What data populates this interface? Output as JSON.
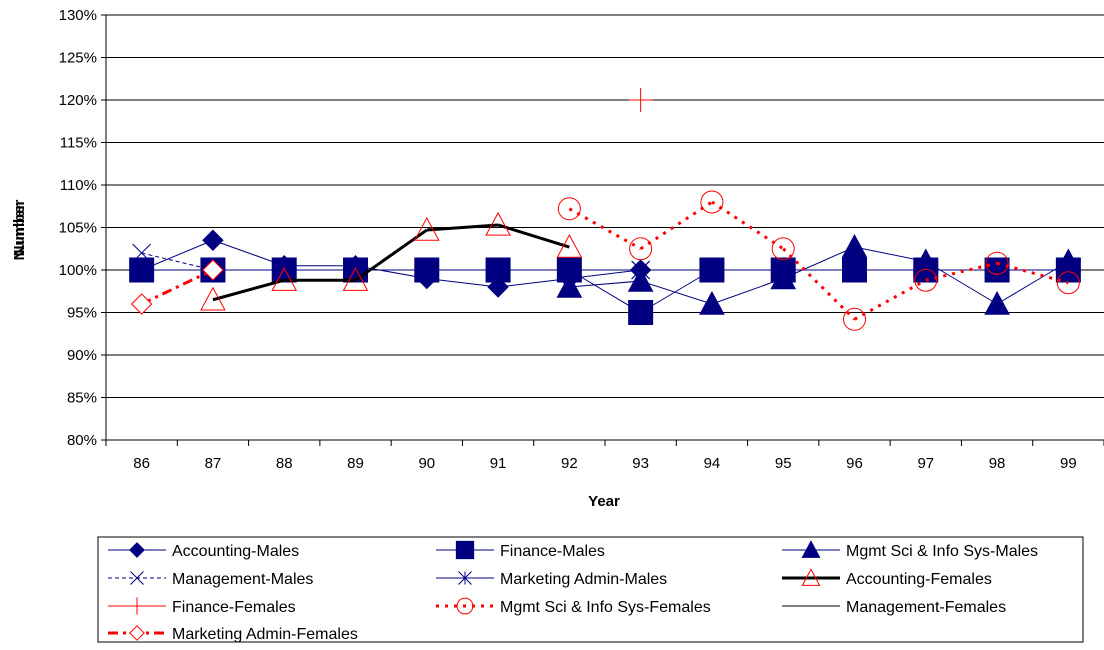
{
  "colors": {
    "navy": "#000080",
    "red": "#ff0000",
    "black": "#000000"
  },
  "chart_data": {
    "type": "line",
    "title": "",
    "xlabel": "Year",
    "ylabel": "Number",
    "ylabel_overlap": "Number",
    "categories": [
      "86",
      "87",
      "88",
      "89",
      "90",
      "91",
      "92",
      "93",
      "94",
      "95",
      "96",
      "97",
      "98",
      "99"
    ],
    "ylim": [
      0.8,
      1.3
    ],
    "yticks": [
      "80%",
      "85%",
      "90%",
      "95%",
      "100%",
      "105%",
      "110%",
      "115%",
      "120%",
      "125%",
      "130%"
    ],
    "grid": true,
    "legend_position": "bottom",
    "series": [
      {
        "name": "Accounting-Males",
        "color": "#000080",
        "marker": "diamond-filled",
        "dash": "solid",
        "values": [
          1.0,
          1.035,
          1.005,
          1.005,
          0.99,
          0.98,
          0.99,
          1.0,
          null,
          null,
          null,
          null,
          null,
          null
        ]
      },
      {
        "name": "Finance-Males",
        "color": "#000080",
        "marker": "square-filled",
        "dash": "solid",
        "values": [
          1.0,
          1.0,
          1.0,
          1.0,
          1.0,
          1.0,
          1.0,
          0.95,
          1.0,
          1.0,
          1.0,
          1.0,
          1.0,
          1.0
        ]
      },
      {
        "name": "Mgmt Sci & Info Sys-Males",
        "color": "#000080",
        "marker": "triangle-filled",
        "dash": "solid",
        "values": [
          null,
          null,
          null,
          null,
          null,
          null,
          0.98,
          0.987,
          0.96,
          0.99,
          1.027,
          1.01,
          0.96,
          1.01
        ]
      },
      {
        "name": "Management-Males",
        "color": "#000080",
        "marker": "x",
        "dash": "dashed",
        "values": [
          1.02,
          1.0,
          1.0,
          1.0,
          1.0,
          1.0,
          1.0,
          1.0,
          1.0,
          1.0,
          1.0,
          1.0,
          1.0,
          1.0
        ]
      },
      {
        "name": "Marketing Admin-Males",
        "color": "#000080",
        "marker": "star",
        "dash": "solid",
        "values": [
          1.0,
          1.0,
          1.0,
          1.0,
          1.0,
          1.0,
          1.0,
          1.0,
          1.0,
          1.0,
          1.0,
          1.0,
          1.0,
          1.0
        ]
      },
      {
        "name": "Accounting-Females",
        "color": "#000000",
        "marker": "triangle-open-red",
        "dash": "thick",
        "values": [
          null,
          0.965,
          0.988,
          0.988,
          1.047,
          1.053,
          1.027,
          null,
          null,
          null,
          null,
          null,
          null,
          null
        ]
      },
      {
        "name": "Finance-Females",
        "color": "#ff0000",
        "marker": "plus",
        "dash": "solid",
        "values": [
          null,
          null,
          null,
          null,
          null,
          null,
          null,
          1.2,
          null,
          null,
          null,
          null,
          null,
          null
        ]
      },
      {
        "name": "Mgmt Sci & Info Sys-Females",
        "color": "#ff0000",
        "marker": "circle-open",
        "dash": "dotted",
        "values": [
          null,
          null,
          null,
          null,
          null,
          null,
          1.072,
          1.025,
          1.08,
          1.025,
          0.942,
          0.988,
          1.008,
          0.985
        ]
      },
      {
        "name": "Management-Females",
        "color": "#000000",
        "marker": "none",
        "dash": "solid",
        "values": [
          null,
          null,
          null,
          null,
          null,
          null,
          null,
          null,
          null,
          null,
          null,
          null,
          null,
          null
        ]
      },
      {
        "name": "Marketing Admin-Females",
        "color": "#ff0000",
        "marker": "diamond-open",
        "dash": "dashdot",
        "values": [
          0.96,
          1.0,
          null,
          null,
          null,
          null,
          null,
          null,
          null,
          null,
          null,
          null,
          null,
          null
        ]
      }
    ]
  }
}
